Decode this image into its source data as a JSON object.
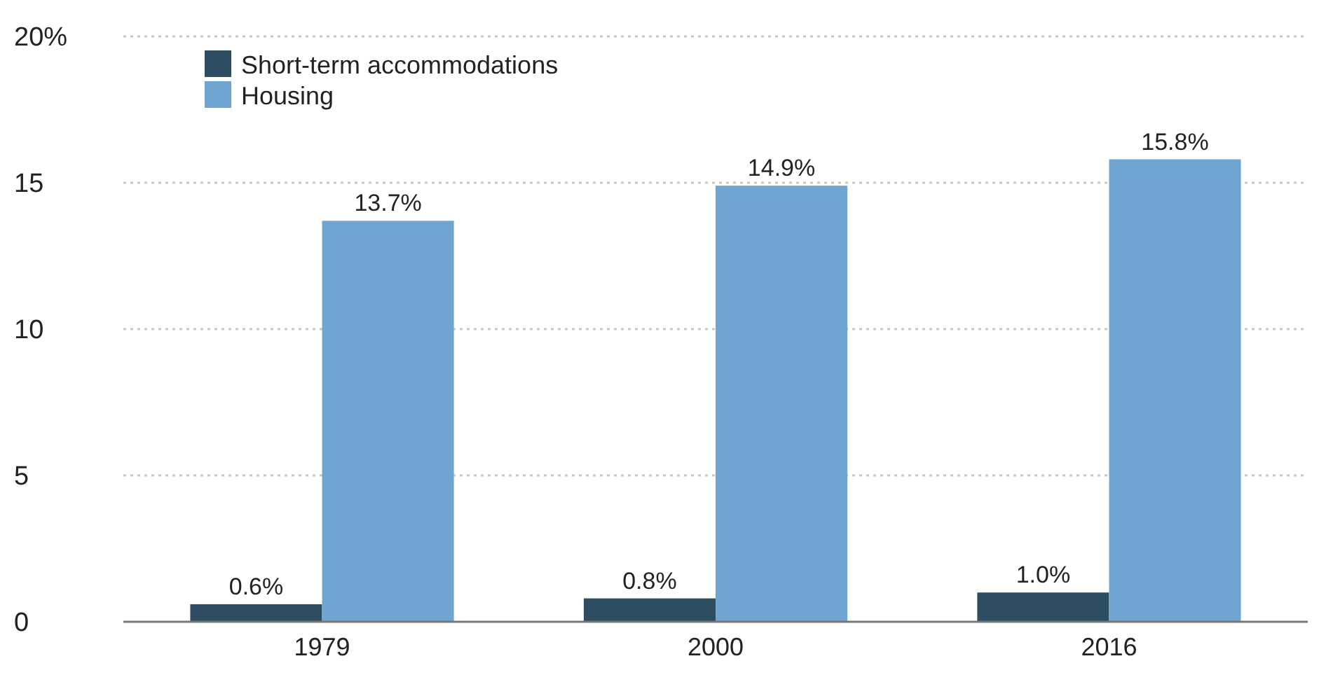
{
  "chart_data": {
    "type": "bar",
    "categories": [
      "1979",
      "2000",
      "2016"
    ],
    "series": [
      {
        "name": "Short-term accommodations",
        "color": "#2d4d63",
        "values": [
          0.6,
          0.8,
          1.0
        ],
        "value_labels": [
          "0.6%",
          "0.8%",
          "1.0%"
        ]
      },
      {
        "name": "Housing",
        "color": "#70a5d2",
        "values": [
          13.7,
          14.9,
          15.8
        ],
        "value_labels": [
          "13.7%",
          "14.9%",
          "15.8%"
        ]
      }
    ],
    "ylim": [
      0,
      20
    ],
    "yticks": [
      0,
      5,
      10,
      15,
      {
        "value": 20,
        "label": "20%"
      }
    ],
    "grid": "y",
    "legend": "top left"
  }
}
